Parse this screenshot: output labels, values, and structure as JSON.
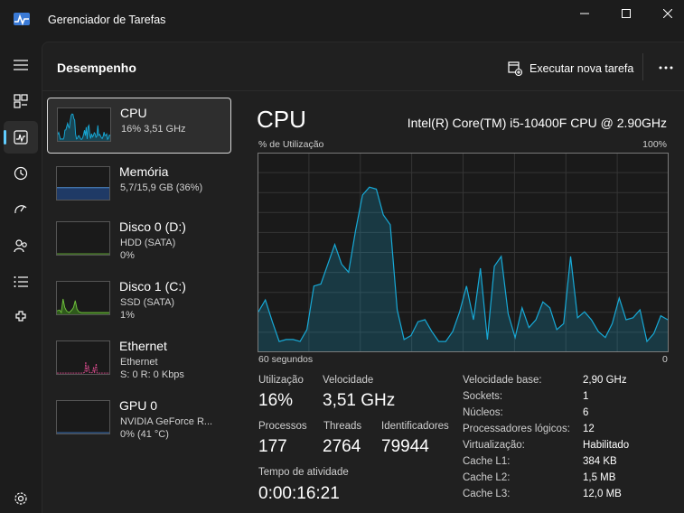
{
  "window": {
    "title": "Gerenciador de Tarefas",
    "accent_color": "#60cdff"
  },
  "sidebar": {
    "items": [
      {
        "name": "hamburger-menu-icon"
      },
      {
        "name": "processes-icon"
      },
      {
        "name": "performance-icon",
        "active": true
      },
      {
        "name": "app-history-icon"
      },
      {
        "name": "startup-apps-icon"
      },
      {
        "name": "users-icon"
      },
      {
        "name": "details-icon"
      },
      {
        "name": "services-icon"
      },
      {
        "name": "settings-icon"
      }
    ]
  },
  "header": {
    "title": "Desempenho",
    "run_task_label": "Executar nova tarefa"
  },
  "resources": [
    {
      "name": "CPU",
      "sub1": "16%  3,51 GHz",
      "sub2": "",
      "color": "#17a9d6",
      "selected": true
    },
    {
      "name": "Memória",
      "sub1": "5,7/15,9 GB (36%)",
      "sub2": "",
      "color": "#4f8fd6"
    },
    {
      "name": "Disco 0 (D:)",
      "sub1": "HDD (SATA)",
      "sub2": "0%",
      "color": "#6fbf3c"
    },
    {
      "name": "Disco 1 (C:)",
      "sub1": "SSD (SATA)",
      "sub2": "1%",
      "color": "#6fbf3c"
    },
    {
      "name": "Ethernet",
      "sub1": "Ethernet",
      "sub2": "S: 0 R: 0 Kbps",
      "color": "#d84a8c"
    },
    {
      "name": "GPU 0",
      "sub1": "NVIDIA GeForce R...",
      "sub2": "0%  (41 °C)",
      "color": "#3f7fcf"
    }
  ],
  "cpu": {
    "title": "CPU",
    "model": "Intel(R) Core(TM) i5-10400F CPU @ 2.90GHz",
    "util_label": "% de Utilização",
    "max_label": "100%",
    "x_left": "60 segundos",
    "x_right": "0",
    "stats": {
      "utilizacao_label": "Utilização",
      "utilizacao": "16%",
      "velocidade_label": "Velocidade",
      "velocidade": "3,51 GHz",
      "processos_label": "Processos",
      "processos": "177",
      "threads_label": "Threads",
      "threads": "2764",
      "identificadores_label": "Identificadores",
      "identificadores": "79944",
      "tempo_label": "Tempo de atividade",
      "tempo": "0:00:16:21"
    },
    "info": [
      {
        "k": "Velocidade base:",
        "v": "2,90 GHz"
      },
      {
        "k": "Sockets:",
        "v": "1"
      },
      {
        "k": "Núcleos:",
        "v": "6"
      },
      {
        "k": "Processadores lógicos:",
        "v": "12"
      },
      {
        "k": "Virtualização:",
        "v": "Habilitado"
      },
      {
        "k": "Cache L1:",
        "v": "384 KB"
      },
      {
        "k": "Cache L2:",
        "v": "1,5 MB"
      },
      {
        "k": "Cache L3:",
        "v": "12,0 MB"
      }
    ]
  },
  "chart_data": {
    "type": "area",
    "xlabel": "60 segundos",
    "ylabel": "% de Utilização",
    "ylim": [
      0,
      100
    ],
    "xlim": [
      60,
      0
    ],
    "grid": true,
    "color": "#17a9d6",
    "series": [
      {
        "values": [
          20,
          26,
          15,
          5,
          6,
          6,
          5,
          11,
          33,
          34,
          44,
          54,
          44,
          40,
          61,
          79,
          83,
          82,
          69,
          64,
          21,
          6,
          8,
          15,
          16,
          10,
          5,
          5,
          10,
          20,
          33,
          16,
          42,
          6,
          43,
          48,
          19,
          7,
          22,
          12,
          16,
          25,
          22,
          11,
          14,
          48,
          17,
          20,
          16,
          10,
          7,
          14,
          27,
          16,
          17,
          21,
          5,
          9,
          18,
          16
        ]
      }
    ]
  }
}
